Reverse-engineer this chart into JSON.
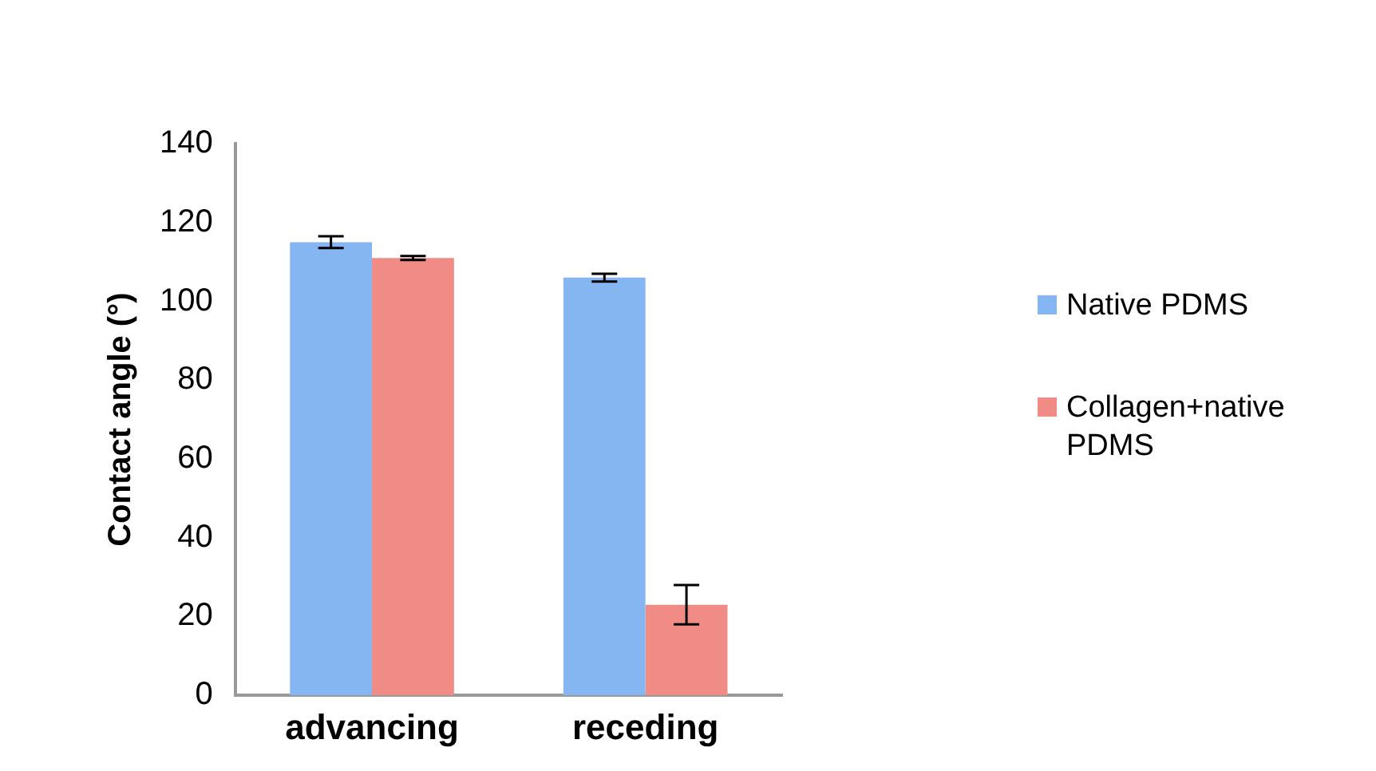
{
  "chart_data": {
    "type": "bar",
    "ylabel": "Contact angle (°)",
    "categories": [
      "advancing",
      "receding"
    ],
    "series": [
      {
        "name": "Native PDMS",
        "color": "#86b6f2",
        "values": [
          115,
          106
        ],
        "errors": [
          1.5,
          1
        ]
      },
      {
        "name": "Collagen+native PDMS",
        "color": "#f08c85",
        "values": [
          111,
          23
        ],
        "errors": [
          0.5,
          5
        ]
      }
    ],
    "ylim": [
      0,
      140
    ],
    "yticks": [
      0,
      20,
      40,
      60,
      80,
      100,
      120,
      140
    ],
    "grid": false,
    "legend": "right"
  }
}
